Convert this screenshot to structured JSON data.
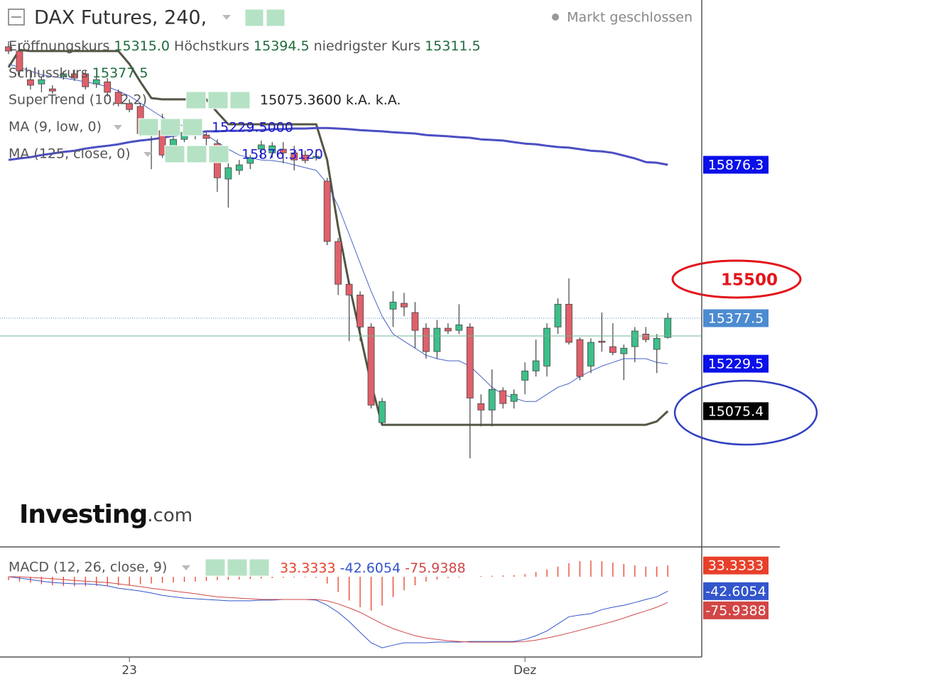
{
  "chart_data": [
    {
      "type": "candlestick",
      "title": "DAX Futures, 240,",
      "status": "Markt geschlossen",
      "watermark": [
        "Investing",
        ".com"
      ],
      "ylim": [
        14634,
        16412
      ],
      "candles": {
        "up_color": "#3dbf8a",
        "down_color": "#e0606a",
        "outline": "#444444",
        "badge_color": "#4c8bd0",
        "names": {
          "open": "Eröffnungskurs",
          "high": "Höchstkurs",
          "low": "niedrigster Kurs",
          "close": "Schlusskurs"
        },
        "labels": {
          "open": "15315.0",
          "high": "15394.5",
          "low": "15311.5",
          "close": "15377.5"
        },
        "open": [
          16260,
          16246,
          16153,
          16139,
          16123,
          16163,
          16172,
          16172,
          16139,
          16146,
          16112,
          16075,
          16066,
          16008,
          15987,
          15908,
          15959,
          15973,
          15973,
          15945,
          15830,
          15858,
          15881,
          15927,
          15915,
          15927,
          15915,
          15908,
          15899,
          15823,
          15627,
          15488,
          15453,
          15349,
          15038,
          15407,
          15426,
          15396,
          15345,
          15269,
          15345,
          15338,
          15349,
          15100,
          15079,
          15142,
          15107,
          15176,
          15206,
          15222,
          15349,
          15423,
          15308,
          15222,
          15303,
          15285,
          15262,
          15285,
          15326,
          15276,
          15315.0
        ],
        "close": [
          16246,
          16181,
          16135,
          16153,
          16116,
          16172,
          16158,
          16130,
          16153,
          16112,
          16075,
          16056,
          15978,
          15985,
          15908,
          15959,
          15982,
          15992,
          15962,
          15834,
          15867,
          15876,
          15899,
          15941,
          15938,
          15915,
          15892,
          15890,
          15904,
          15627,
          15488,
          15453,
          15349,
          15095,
          15107,
          15430,
          15414,
          15338,
          15269,
          15345,
          15336,
          15356,
          15118,
          15079,
          15146,
          15100,
          15130,
          15206,
          15239,
          15345,
          15423,
          15299,
          15188,
          15299,
          15299,
          15266,
          15280,
          15336,
          15308,
          15312,
          15377.5
        ],
        "high": [
          16278,
          16269,
          16181,
          16163,
          16135,
          16181,
          16186,
          16181,
          16163,
          16158,
          16121,
          16089,
          16077,
          16019,
          16042,
          15973,
          15996,
          16001,
          15982,
          15959,
          15881,
          15892,
          15908,
          15955,
          15950,
          15950,
          15938,
          15922,
          15927,
          15834,
          15638,
          15500,
          15465,
          15361,
          15118,
          15465,
          15460,
          15430,
          15361,
          15372,
          15361,
          15423,
          15361,
          15130,
          15211,
          15153,
          15146,
          15234,
          15308,
          15361,
          15442,
          15507,
          15315,
          15312,
          15396,
          15361,
          15292,
          15349,
          15349,
          15326,
          15394.5
        ],
        "low": [
          16236,
          16167,
          16121,
          16112,
          16107,
          16153,
          16149,
          16121,
          16126,
          16098,
          16066,
          16047,
          15969,
          15862,
          15899,
          15899,
          15950,
          15959,
          15938,
          15788,
          15737,
          15844,
          15862,
          15899,
          15899,
          15881,
          15858,
          15881,
          15890,
          15615,
          15453,
          15303,
          15303,
          15084,
          15031,
          15349,
          15384,
          15280,
          15246,
          15246,
          15326,
          15326,
          14922,
          15026,
          15026,
          15084,
          15084,
          15130,
          15188,
          15188,
          15326,
          15292,
          15176,
          15199,
          15269,
          15257,
          15176,
          15234,
          15299,
          15199,
          15311.5
        ]
      },
      "series": [
        {
          "name": "SuperTrend (10, 2.2)",
          "color": "#555544",
          "width": 3,
          "badge_color": "#000000",
          "legend_label": "15075.3600",
          "legend_extra": [
            "k.A.",
            "k.A."
          ],
          "badge_label": "15075.4",
          "values": [
            16193,
            16250,
            16246,
            16246,
            16246,
            16246,
            16246,
            16246,
            16246,
            16246,
            16246,
            16204,
            16146,
            16093,
            16089,
            16089,
            16089,
            16089,
            16089,
            16047,
            16008,
            16008,
            16008,
            16008,
            16008,
            16008,
            16008,
            16008,
            16008,
            15892,
            15673,
            15488,
            15326,
            15165,
            15031,
            15031,
            15031,
            15031,
            15031,
            15031,
            15031,
            15031,
            15031,
            15031,
            15031,
            15031,
            15031,
            15031,
            15031,
            15031,
            15031,
            15031,
            15031,
            15031,
            15031,
            15031,
            15031,
            15031,
            15031,
            15042,
            15075.36
          ]
        },
        {
          "name": "MA (9, low, 0)",
          "color": "#4a62c8",
          "width": 1,
          "badge_color": "#0a10e8",
          "legend_label": "15229.5000",
          "badge_label": "15229.5",
          "values": [
            16204,
            16193,
            16181,
            16169,
            16163,
            16158,
            16153,
            16146,
            16139,
            16130,
            16116,
            16100,
            16077,
            16054,
            16031,
            16015,
            16001,
            15987,
            15973,
            15950,
            15927,
            15908,
            15899,
            15892,
            15890,
            15885,
            15876,
            15867,
            15858,
            15816,
            15742,
            15650,
            15557,
            15465,
            15384,
            15326,
            15303,
            15280,
            15257,
            15246,
            15239,
            15239,
            15222,
            15188,
            15153,
            15130,
            15118,
            15107,
            15107,
            15130,
            15153,
            15165,
            15188,
            15206,
            15222,
            15234,
            15246,
            15246,
            15246,
            15234,
            15229.5
          ]
        },
        {
          "name": "MA (125, close, 0)",
          "color": "#4b4fc4",
          "width": 3,
          "badge_color": "#0a10e8",
          "legend_label": "15876.3120",
          "badge_label": "15876.3",
          "values": [
            15892,
            15897,
            15901,
            15908,
            15913,
            15918,
            15922,
            15929,
            15934,
            15938,
            15943,
            15950,
            15955,
            15959,
            15964,
            15971,
            15975,
            15980,
            15985,
            15985,
            15987,
            15987,
            15989,
            15989,
            15992,
            15992,
            15994,
            15994,
            15996,
            15996,
            15994,
            15992,
            15989,
            15987,
            15985,
            15982,
            15980,
            15978,
            15973,
            15971,
            15969,
            15966,
            15964,
            15959,
            15957,
            15955,
            15950,
            15945,
            15943,
            15938,
            15934,
            15932,
            15927,
            15922,
            15920,
            15915,
            15906,
            15897,
            15885,
            15883,
            15876.312
          ]
        }
      ],
      "annotation": 15500,
      "annotation_color": "#e3141b"
    },
    {
      "type": "macd",
      "title": "MACD (12, 26, close, 9)",
      "ylim": [
        -237,
        84
      ],
      "categories": [
        null,
        null,
        null,
        null,
        null,
        null,
        null,
        null,
        null,
        null,
        null,
        "23",
        null,
        null,
        null,
        null,
        null,
        null,
        null,
        null,
        null,
        null,
        null,
        null,
        null,
        null,
        null,
        null,
        null,
        null,
        null,
        null,
        null,
        null,
        null,
        null,
        null,
        null,
        null,
        null,
        null,
        null,
        null,
        null,
        null,
        null,
        null,
        "Dez",
        null,
        null,
        null,
        null,
        null,
        null,
        null,
        null,
        null,
        null,
        null,
        null,
        null
      ],
      "series": [
        {
          "type": "bar",
          "color": "#e8402a",
          "values": [
            -10,
            -14,
            -18,
            -22,
            -25,
            -27,
            -28,
            -28,
            -27,
            -26,
            -25,
            -24,
            -22,
            -20,
            -18,
            -17,
            -15,
            -14,
            -12,
            -10,
            -9,
            -8,
            -6,
            -5,
            -4,
            -3,
            -2,
            -2,
            -3,
            -20,
            -45,
            -70,
            -90,
            -100,
            -85,
            -60,
            -40,
            -25,
            -14,
            -8,
            -4,
            -2,
            0,
            2,
            3,
            4,
            5,
            8,
            14,
            22,
            30,
            40,
            46,
            48,
            46,
            42,
            38,
            34,
            30,
            30,
            33.3333
          ]
        },
        {
          "type": "line",
          "color": "#3355cc",
          "values": [
            0,
            -4,
            -8,
            -13,
            -17,
            -19,
            -21,
            -21,
            -23,
            -27,
            -34,
            -38,
            -42,
            -48,
            -55,
            -59,
            -63,
            -65,
            -67,
            -69,
            -71,
            -71,
            -71,
            -69,
            -69,
            -67,
            -67,
            -67,
            -69,
            -84,
            -105,
            -132,
            -164,
            -195,
            -210,
            -202,
            -195,
            -195,
            -195,
            -193,
            -193,
            -193,
            -191,
            -191,
            -191,
            -191,
            -191,
            -185,
            -174,
            -160,
            -139,
            -118,
            -113,
            -109,
            -97,
            -90,
            -84,
            -76,
            -67,
            -59,
            -42.6054
          ]
        },
        {
          "type": "line",
          "color": "#d24646",
          "values": [
            0,
            0,
            -2,
            -4,
            -6,
            -8,
            -11,
            -13,
            -15,
            -17,
            -21,
            -25,
            -29,
            -34,
            -38,
            -42,
            -46,
            -50,
            -55,
            -59,
            -61,
            -63,
            -65,
            -67,
            -67,
            -67,
            -67,
            -67,
            -67,
            -71,
            -80,
            -92,
            -105,
            -122,
            -139,
            -153,
            -164,
            -174,
            -181,
            -185,
            -189,
            -191,
            -193,
            -193,
            -193,
            -193,
            -193,
            -191,
            -187,
            -181,
            -174,
            -166,
            -158,
            -149,
            -141,
            -132,
            -122,
            -111,
            -101,
            -90,
            -75.9388
          ]
        }
      ]
    }
  ]
}
